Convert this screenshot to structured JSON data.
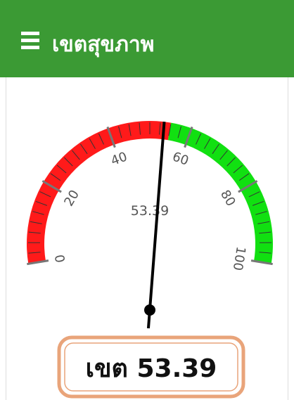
{
  "header": {
    "title": "เขตสุขภาพ"
  },
  "gauge": {
    "min": 0,
    "max": 100,
    "value": 53.39,
    "ticks": [
      0,
      20,
      40,
      60,
      80,
      100
    ],
    "bands": [
      {
        "from": 0,
        "to": 55,
        "color": "#ff1a1a"
      },
      {
        "from": 55,
        "to": 100,
        "color": "#11e011"
      }
    ],
    "label_prefix": "เขต"
  }
}
